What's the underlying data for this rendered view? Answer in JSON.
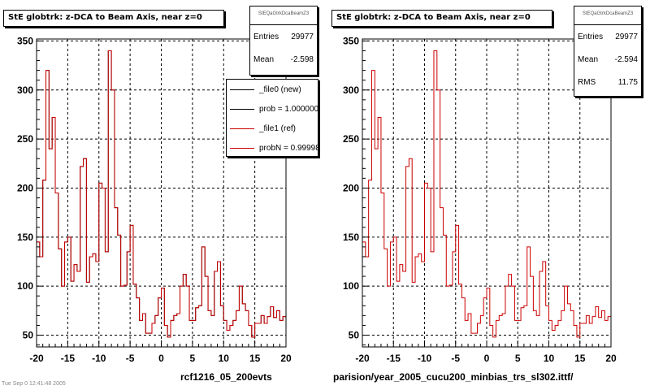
{
  "panels": [
    {
      "title": "StE globtrk: z-DCA to Beam Axis, near z=0",
      "stats": {
        "name": "StEQaGtrkDcaBeamZ3",
        "entries_label": "Entries",
        "entries_value": "29977",
        "mean_label": "Mean",
        "mean_value": "-2.598"
      },
      "legend": {
        "items": [
          {
            "label": "_file0 (new)",
            "color": "#000000"
          },
          {
            "label": "prob = 1.000000",
            "color": "#000000"
          },
          {
            "label": "_file1 (ref)",
            "color": "#cc0000"
          },
          {
            "label": "probN = 0.999980",
            "color": "#cc0000"
          }
        ]
      },
      "footer": "rcf1216_05_200evts"
    },
    {
      "title": "StE globtrk: z-DCA to Beam Axis, near z=0",
      "stats": {
        "name": "StEQaGtrkDcaBeamZ3",
        "entries_label": "Entries",
        "entries_value": "29977",
        "mean_label": "Mean",
        "mean_value": "-2.594",
        "rms_label": "RMS",
        "rms_value": "11.75"
      },
      "footer": "parision/year_2005_cucu200_minbias_trs_sl302.ittf/"
    }
  ],
  "bottom_left_text": "Tue Sep 0 12:41:48 2005",
  "chart_data": [
    {
      "type": "line",
      "subtype": "step-histogram",
      "title": "StE globtrk: z-DCA to Beam Axis, near z=0",
      "xlabel": "",
      "ylabel": "",
      "xlim": [
        -20,
        20
      ],
      "ylim": [
        38,
        352
      ],
      "x_ticks": [
        -20,
        -15,
        -10,
        -5,
        0,
        5,
        10,
        15,
        20
      ],
      "y_ticks": [
        50,
        100,
        150,
        200,
        250,
        300,
        350
      ],
      "grid": true,
      "bin_width": 0.5,
      "series": [
        {
          "name": "_file1 (ref)",
          "color": "#cc0000",
          "values": [
            145,
            130,
            208,
            320,
            240,
            272,
            195,
            138,
            100,
            145,
            150,
            105,
            122,
            115,
            222,
            230,
            104,
            130,
            133,
            125,
            205,
            200,
            135,
            340,
            300,
            180,
            152,
            100,
            101,
            135,
            162,
            102,
            88,
            65,
            72,
            52,
            52,
            62,
            70,
            88,
            98,
            60,
            48,
            65,
            70,
            72,
            100,
            112,
            100,
            65,
            65,
            78,
            80,
            140,
            110,
            75,
            70,
            115,
            125,
            80,
            65,
            55,
            60,
            65,
            75,
            100,
            82,
            75,
            60,
            48,
            62,
            62,
            70,
            62,
            69,
            79,
            68,
            75,
            65,
            69
          ]
        },
        {
          "name": "_file0 (new)",
          "color": "#000000",
          "values": [
            145,
            130,
            208,
            320,
            240,
            272,
            195,
            138,
            100,
            145,
            150,
            105,
            122,
            115,
            222,
            230,
            104,
            130,
            133,
            125,
            205,
            200,
            135,
            340,
            300,
            180,
            152,
            100,
            101,
            135,
            162,
            102,
            88,
            65,
            72,
            52,
            52,
            62,
            70,
            88,
            98,
            60,
            48,
            65,
            70,
            72,
            100,
            112,
            100,
            65,
            65,
            78,
            80,
            140,
            110,
            75,
            70,
            115,
            125,
            80,
            65,
            55,
            60,
            65,
            75,
            100,
            82,
            75,
            60,
            48,
            62,
            62,
            70,
            62,
            69,
            79,
            68,
            75,
            65,
            69
          ]
        }
      ]
    },
    {
      "type": "line",
      "subtype": "step-histogram",
      "title": "StE globtrk: z-DCA to Beam Axis, near z=0",
      "xlabel": "",
      "ylabel": "",
      "xlim": [
        -20,
        20
      ],
      "ylim": [
        38,
        352
      ],
      "x_ticks": [
        -20,
        -15,
        -10,
        -5,
        0,
        5,
        10,
        15,
        20
      ],
      "y_ticks": [
        50,
        100,
        150,
        200,
        250,
        300,
        350
      ],
      "grid": true,
      "bin_width": 0.5,
      "series": [
        {
          "name": "",
          "color": "#cc0000",
          "values": [
            145,
            130,
            208,
            320,
            240,
            272,
            195,
            138,
            100,
            145,
            150,
            105,
            122,
            115,
            222,
            230,
            104,
            130,
            133,
            125,
            205,
            200,
            135,
            340,
            300,
            180,
            152,
            100,
            101,
            135,
            162,
            102,
            88,
            65,
            72,
            52,
            52,
            62,
            70,
            88,
            98,
            60,
            48,
            65,
            70,
            72,
            100,
            112,
            100,
            65,
            65,
            78,
            80,
            140,
            110,
            75,
            70,
            115,
            125,
            80,
            65,
            55,
            60,
            65,
            75,
            100,
            82,
            75,
            60,
            48,
            62,
            62,
            70,
            62,
            69,
            79,
            68,
            75,
            65,
            69
          ]
        }
      ]
    }
  ]
}
